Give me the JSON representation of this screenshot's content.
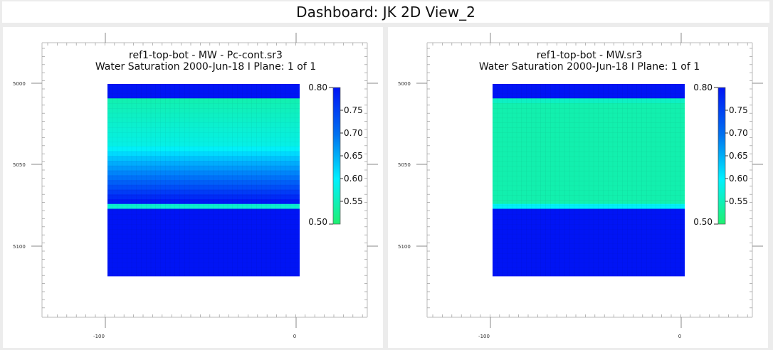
{
  "dashboard": {
    "title": "Dashboard: JK 2D View_2"
  },
  "panels": [
    {
      "id": "pc-cont",
      "title": "ref1-top-bot - MW - Pc-cont.sr3",
      "subtitle": "Water Saturation  2000-Jun-18   I Plane: 1 of 1",
      "profile": "pc-cont"
    },
    {
      "id": "mw",
      "title": "ref1-top-bot - MW.sr3",
      "subtitle": "Water Saturation  2000-Jun-18   I Plane: 1 of 1",
      "profile": "sharp"
    }
  ],
  "axes": {
    "y_ticks": [
      "5000",
      "5050",
      "5100"
    ],
    "x_ticks": [
      "-100",
      "0"
    ]
  },
  "colorbar": {
    "min": 0.5,
    "max": 0.8,
    "min_label": "0.50",
    "max_label": "0.80",
    "tick_labels": [
      "0.75",
      "0.70",
      "0.65",
      "0.60",
      "0.55"
    ],
    "colors": {
      "low": "#20f070",
      "mid": "#00f0ff",
      "high": "#0014f5"
    }
  }
}
